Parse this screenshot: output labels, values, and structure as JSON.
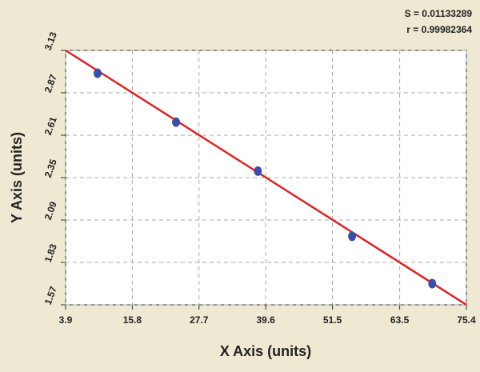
{
  "chart_data": {
    "type": "scatter",
    "xlabel": "X Axis (units)",
    "ylabel": "Y Axis (units)",
    "annotations": [
      "S = 0.01133289",
      "r = 0.99982364"
    ],
    "xlim": [
      3.9,
      75.4
    ],
    "xticks": [
      3.9,
      15.8,
      27.7,
      39.6,
      51.5,
      63.5,
      75.4
    ],
    "ylim": [
      1.57,
      3.13
    ],
    "yticks": [
      1.57,
      1.83,
      2.09,
      2.35,
      2.61,
      2.87,
      3.13
    ],
    "grid": true,
    "series": [
      {
        "x": [
          9.6,
          23.6,
          38.2,
          55.0,
          69.3
        ],
        "values": [
          2.99,
          2.69,
          2.39,
          1.99,
          1.7
        ],
        "color": "#3a4fa8"
      },
      {
        "x": [
          3.9,
          75.4
        ],
        "values": [
          3.13,
          1.57
        ],
        "color": "#e02020",
        "kind": "line"
      }
    ]
  }
}
